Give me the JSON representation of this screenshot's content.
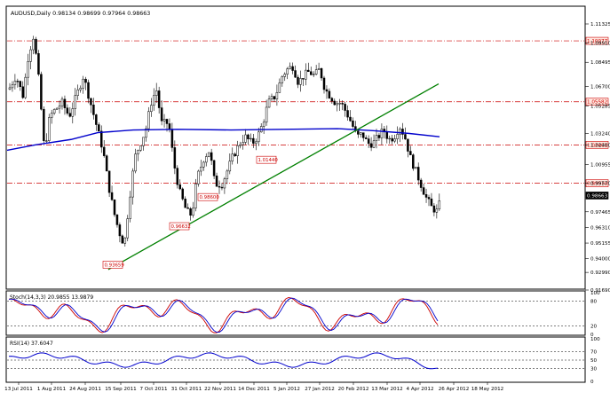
{
  "main_chart": {
    "header": "AUDUSD,Daily  0.98134 0.98699 0.97964 0.98663",
    "y_ticks": [
      "1.11325",
      "1.09910",
      "1.08495",
      "1.06700",
      "1.05285",
      "1.03240",
      "1.02400",
      "1.00955",
      "0.99570",
      "0.97465",
      "0.96310",
      "0.95155",
      "0.94000",
      "0.92990",
      "0.91690"
    ],
    "price_labels": {
      "p1": "1.10077",
      "p2": "1.05582",
      "p3": "1.02401",
      "p4": "0.99570",
      "current": "0.98663"
    },
    "annotations": [
      "0.93659",
      "0.96632",
      "0.98600",
      "1.01440"
    ],
    "colors": {
      "candle": "#000000",
      "moving_average": "#0000cc",
      "trendline": "#008000",
      "level_line": "#cc0000",
      "label_border": "#cc0000",
      "label_text": "#cc0000"
    }
  },
  "stoch_panel": {
    "header": "Stoch(14,3,3) 20.9855 13.9879",
    "y_ticks": [
      "100",
      "80",
      "20",
      "0"
    ],
    "colors": {
      "main": "#cc0000",
      "signal": "#0000cc"
    }
  },
  "rsi_panel": {
    "header": "RSI(14) 37.6047",
    "y_ticks": [
      "100",
      "70",
      "50",
      "30",
      "0"
    ],
    "colors": {
      "line": "#0000cc"
    }
  },
  "x_ticks": [
    "13 Jul 2011",
    "1 Aug 2011",
    "24 Aug 2011",
    "15 Sep 2011",
    "7 Oct 2011",
    "31 Oct 2011",
    "22 Nov 2011",
    "14 Dec 2011",
    "5 Jan 2012",
    "27 Jan 2012",
    "20 Feb 2012",
    "13 Mar 2012",
    "4 Apr 2012",
    "26 Apr 2012",
    "18 May 2012"
  ],
  "chart_data": [
    {
      "type": "candlestick",
      "title": "AUDUSD,Daily",
      "series": [
        {
          "name": "AUDUSD,Daily",
          "x_dates": [
            "13 Jul 2011",
            "1 Aug 2011",
            "24 Aug 2011",
            "15 Sep 2011",
            "7 Oct 2011",
            "31 Oct 2011",
            "22 Nov 2011",
            "14 Dec 2011",
            "5 Jan 2012",
            "27 Jan 2012",
            "20 Feb 2012",
            "13 Mar 2012",
            "4 Apr 2012",
            "26 Apr 2012",
            "18 May 2012"
          ]
        }
      ],
      "last_ohlc": {
        "open": 0.98134,
        "high": 0.98699,
        "low": 0.97964,
        "close": 0.98663
      },
      "ylim": [
        0.9169,
        1.1132
      ],
      "marked_levels": [
        1.10077,
        1.05582,
        1.02401,
        0.9957
      ],
      "swing_labels": [
        0.93659,
        0.96632,
        0.986,
        1.0144
      ]
    },
    {
      "type": "line",
      "title": "Stoch(14,3,3) 20.9855 13.9879",
      "ylim": [
        0,
        100
      ],
      "levels": [
        80,
        20
      ],
      "last": {
        "main": 20.9855,
        "signal": 13.9879
      }
    },
    {
      "type": "line",
      "title": "RSI(14) 37.6047",
      "ylim": [
        0,
        100
      ],
      "levels": [
        70,
        50,
        30
      ],
      "last": {
        "rsi": 37.6047
      }
    }
  ]
}
